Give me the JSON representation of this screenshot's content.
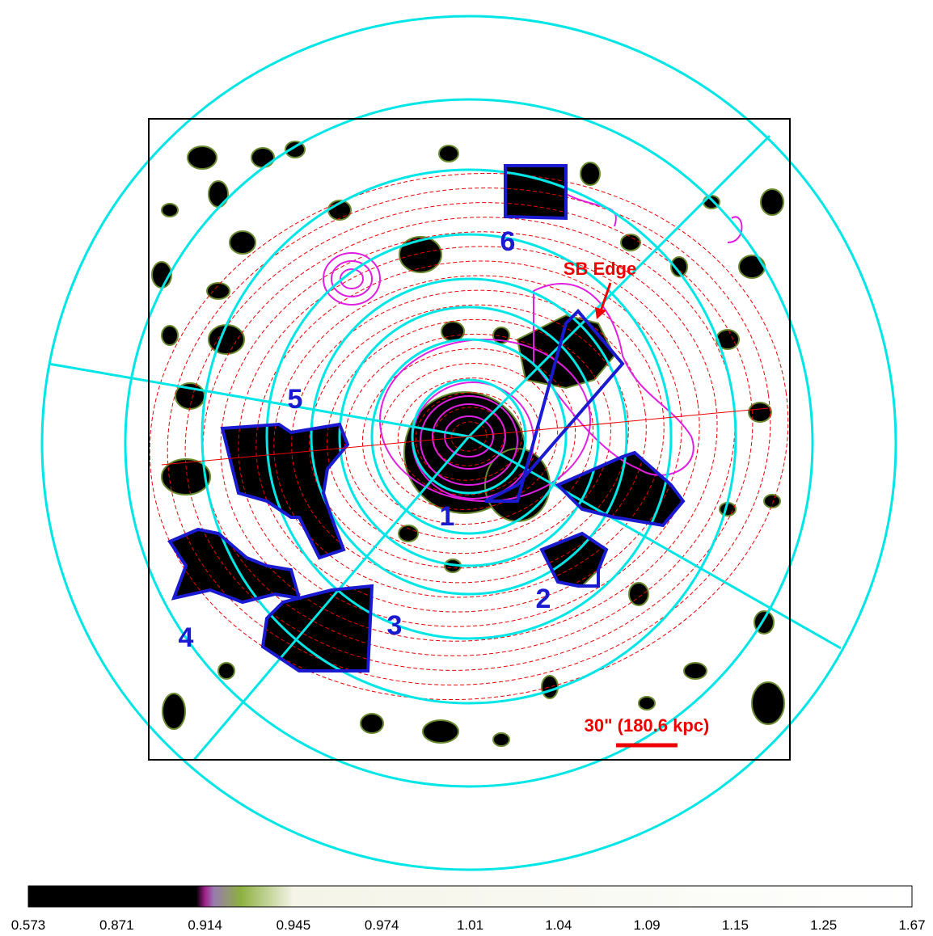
{
  "regions": [
    "1",
    "2",
    "3",
    "4",
    "5",
    "6"
  ],
  "annotations": {
    "edge": "SB Edge",
    "scale": "30\" (180.6 kpc)"
  },
  "colorbar": {
    "ticks": [
      "0.573",
      "0.871",
      "0.914",
      "0.945",
      "0.974",
      "1.01",
      "1.04",
      "1.09",
      "1.15",
      "1.25",
      "1.67"
    ]
  }
}
